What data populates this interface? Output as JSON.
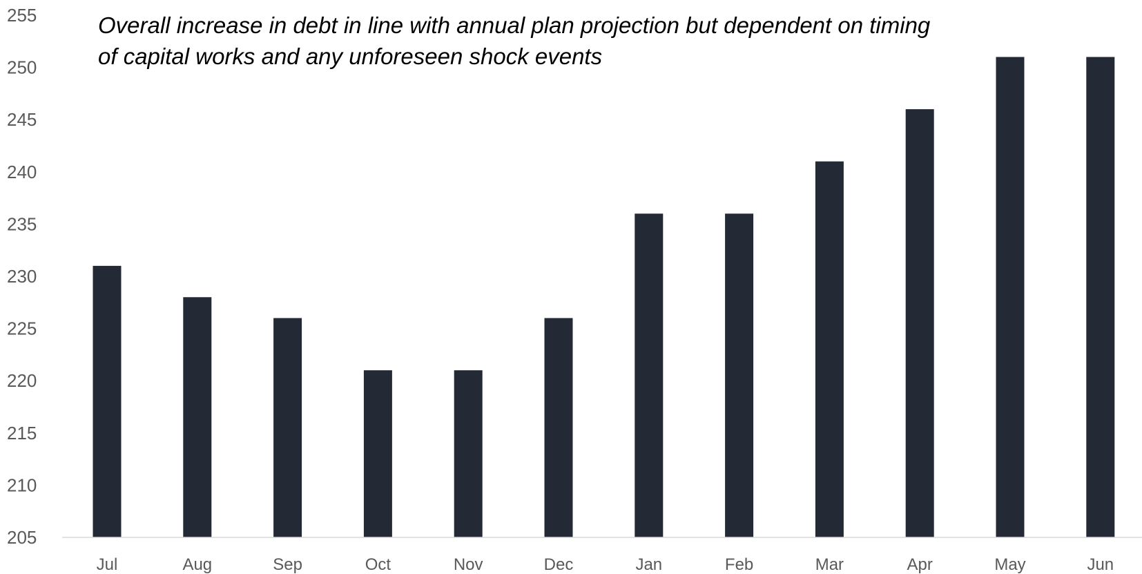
{
  "chart_data": {
    "type": "bar",
    "title": "Overall increase in debt in line with annual plan projection but dependent on timing of capital works and any unforeseen shock events",
    "title_lines": [
      "Overall increase in debt in line with annual plan projection but dependent on timing",
      "of capital works and any unforeseen shock events"
    ],
    "xlabel": "",
    "ylabel": "",
    "categories": [
      "Jul",
      "Aug",
      "Sep",
      "Oct",
      "Nov",
      "Dec",
      "Jan",
      "Feb",
      "Mar",
      "Apr",
      "May",
      "Jun"
    ],
    "values": [
      231,
      228,
      226,
      221,
      221,
      226,
      236,
      236,
      241,
      246,
      251,
      251
    ],
    "ylim": [
      205,
      255
    ],
    "yticks": [
      205,
      210,
      215,
      220,
      225,
      230,
      235,
      240,
      245,
      250,
      255
    ],
    "grid": false,
    "legend": "none",
    "bar_color": "#232a35",
    "axis_color": "#d9d9d9"
  }
}
